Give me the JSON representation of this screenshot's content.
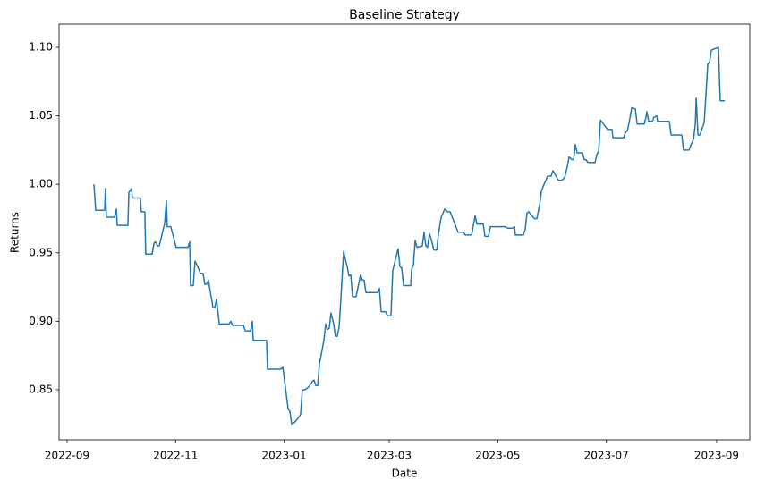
{
  "chart_data": {
    "type": "line",
    "title": "Baseline Strategy",
    "x_label": "Date",
    "y_label": "Returns",
    "color": "#1f77b4",
    "x": [
      15.1,
      16.1,
      21.1,
      21.6,
      22.1,
      26.6,
      27.7,
      28.2,
      34.2,
      34.7,
      36.2,
      36.7,
      41.2,
      41.7,
      43.7,
      44.2,
      47.8,
      48.8,
      49.8,
      50.8,
      51.8,
      53.8,
      54.8,
      55.8,
      56.3,
      58.3,
      61.3,
      67.9,
      68.9,
      69.4,
      70.9,
      71.9,
      73.4,
      74.9,
      76.4,
      77.4,
      78.4,
      79.4,
      82.0,
      83.0,
      84.0,
      85.5,
      91.0,
      92.0,
      93.0,
      99.1,
      100.1,
      103.1,
      104.1,
      104.6,
      112.1,
      112.6,
      120.2,
      121.2,
      124.2,
      125.2,
      126.2,
      127.7,
      129.7,
      131.2,
      132.2,
      133.7,
      135.8,
      137.8,
      138.8,
      139.8,
      140.8,
      141.8,
      143.3,
      144.3,
      145.3,
      146.3,
      147.3,
      148.3,
      149.8,
      150.8,
      151.8,
      152.9,
      154.4,
      155.4,
      156.4,
      157.4,
      158.4,
      159.4,
      160.4,
      162.4,
      164.9,
      165.9,
      166.9,
      167.9,
      174.5,
      175.5,
      176.5,
      179.0,
      180.0,
      182.0,
      183.0,
      186.0,
      187.0,
      188.0,
      189.1,
      193.1,
      193.6,
      194.6,
      195.6,
      196.6,
      199.6,
      200.6,
      201.6,
      202.6,
      203.6,
      204.6,
      206.1,
      207.7,
      208.7,
      210.2,
      212.2,
      213.7,
      215.2,
      218.2,
      219.7,
      222.7,
      223.7,
      227.3,
      228.3,
      229.3,
      230.3,
      233.8,
      234.8,
      236.8,
      237.8,
      246.4,
      247.4,
      250.4,
      251.4,
      251.9,
      256.4,
      257.4,
      258.4,
      259.4,
      262.5,
      264.0,
      265.5,
      266.5,
      268.0,
      270.0,
      272.0,
      273.0,
      276.0,
      278.1,
      279.6,
      281.1,
      282.1,
      283.6,
      284.6,
      285.6,
      286.6,
      289.6,
      290.6,
      291.6,
      292.6,
      296.7,
      297.7,
      298.7,
      299.7,
      303.7,
      306.2,
      306.7,
      312.7,
      313.7,
      314.8,
      315.8,
      317.3,
      319.3,
      320.3,
      324.3,
      325.3,
      325.8,
      326.8,
      328.8,
      329.8,
      331.3,
      331.8,
      338.4,
      339.4,
      345.4,
      346.4,
      349.4,
      351.0,
      352.0,
      353.0,
      353.5,
      354.5,
      355.5,
      358.0,
      359.0,
      360.0,
      361.0,
      362.0,
      366.0,
      367.0,
      369.6
    ],
    "values": [
      1.0,
      0.981,
      0.981,
      0.997,
      0.976,
      0.976,
      0.982,
      0.97,
      0.97,
      0.994,
      0.997,
      0.99,
      0.99,
      0.98,
      0.98,
      0.949,
      0.949,
      0.957,
      0.958,
      0.955,
      0.955,
      0.966,
      0.971,
      0.988,
      0.969,
      0.969,
      0.954,
      0.954,
      0.958,
      0.926,
      0.926,
      0.944,
      0.94,
      0.935,
      0.935,
      0.927,
      0.927,
      0.93,
      0.91,
      0.91,
      0.916,
      0.898,
      0.898,
      0.9,
      0.897,
      0.897,
      0.893,
      0.893,
      0.9,
      0.886,
      0.886,
      0.865,
      0.865,
      0.867,
      0.836,
      0.834,
      0.825,
      0.826,
      0.829,
      0.832,
      0.85,
      0.85,
      0.852,
      0.856,
      0.857,
      0.853,
      0.853,
      0.869,
      0.879,
      0.886,
      0.898,
      0.894,
      0.895,
      0.906,
      0.898,
      0.889,
      0.889,
      0.896,
      0.929,
      0.951,
      0.945,
      0.94,
      0.933,
      0.934,
      0.918,
      0.918,
      0.934,
      0.93,
      0.93,
      0.921,
      0.921,
      0.924,
      0.907,
      0.907,
      0.904,
      0.904,
      0.937,
      0.953,
      0.94,
      0.939,
      0.926,
      0.926,
      0.938,
      0.941,
      0.959,
      0.954,
      0.955,
      0.965,
      0.955,
      0.954,
      0.964,
      0.96,
      0.952,
      0.952,
      0.964,
      0.976,
      0.982,
      0.98,
      0.98,
      0.97,
      0.965,
      0.965,
      0.963,
      0.963,
      0.97,
      0.977,
      0.971,
      0.971,
      0.962,
      0.962,
      0.969,
      0.969,
      0.968,
      0.968,
      0.969,
      0.963,
      0.963,
      0.967,
      0.979,
      0.98,
      0.975,
      0.975,
      0.985,
      0.995,
      1.0,
      1.006,
      1.006,
      1.01,
      1.003,
      1.003,
      1.005,
      1.013,
      1.02,
      1.018,
      1.018,
      1.029,
      1.023,
      1.023,
      1.018,
      1.018,
      1.016,
      1.016,
      1.022,
      1.024,
      1.047,
      1.04,
      1.04,
      1.034,
      1.034,
      1.038,
      1.039,
      1.045,
      1.056,
      1.055,
      1.044,
      1.044,
      1.049,
      1.053,
      1.046,
      1.046,
      1.049,
      1.05,
      1.046,
      1.046,
      1.036,
      1.036,
      1.025,
      1.025,
      1.03,
      1.033,
      1.044,
      1.063,
      1.036,
      1.036,
      1.045,
      1.066,
      1.088,
      1.089,
      1.098,
      1.1,
      1.061,
      1.061
    ],
    "xlim": [
      -4.5,
      383.6
    ],
    "xticks": [
      {
        "value": 0,
        "label": "2022-09"
      },
      {
        "value": 61,
        "label": "2022-11"
      },
      {
        "value": 122,
        "label": "2023-01"
      },
      {
        "value": 181,
        "label": "2023-03"
      },
      {
        "value": 242,
        "label": "2023-05"
      },
      {
        "value": 303,
        "label": "2023-07"
      },
      {
        "value": 365,
        "label": "2023-09"
      }
    ],
    "ylim": [
      0.8134,
      1.117
    ],
    "yticks": [
      0.85,
      {
        "value": 0.9,
        "label": "0.90"
      },
      0.95,
      {
        "value": 1.0,
        "label": "1.00"
      },
      1.05,
      {
        "value": 1.1,
        "label": "1.10"
      }
    ],
    "grid": false
  }
}
